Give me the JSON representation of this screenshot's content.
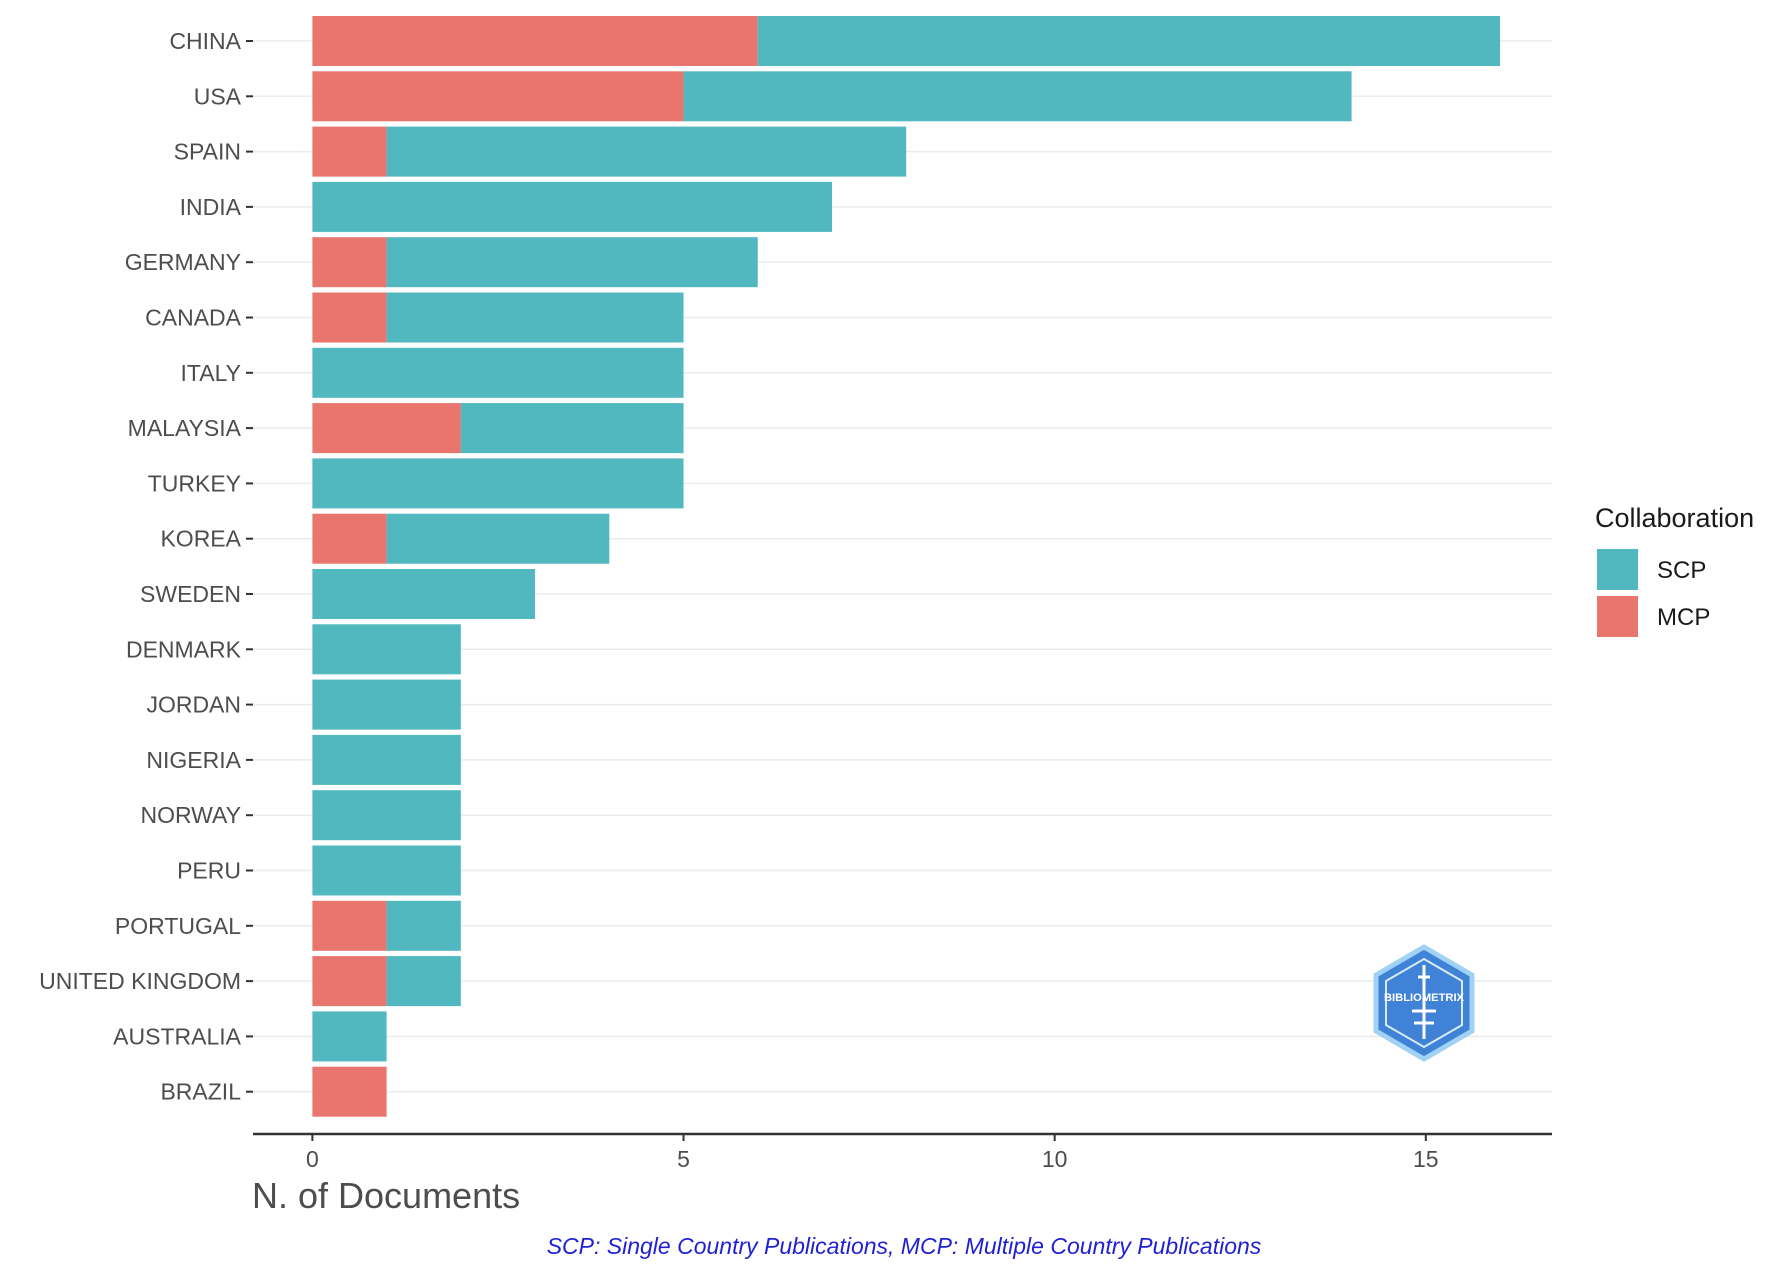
{
  "chart_data": {
    "type": "bar",
    "orientation": "horizontal",
    "stacked": true,
    "title": "",
    "xlabel": "N. of Documents",
    "ylabel": "",
    "xlim": [
      -0.8,
      16.7
    ],
    "x_ticks": [
      0,
      5,
      10,
      15
    ],
    "grid": true,
    "categories": [
      "CHINA",
      "USA",
      "SPAIN",
      "INDIA",
      "GERMANY",
      "CANADA",
      "ITALY",
      "MALAYSIA",
      "TURKEY",
      "KOREA",
      "SWEDEN",
      "DENMARK",
      "JORDAN",
      "NIGERIA",
      "NORWAY",
      "PERU",
      "PORTUGAL",
      "UNITED KINGDOM",
      "AUSTRALIA",
      "BRAZIL"
    ],
    "series": [
      {
        "name": "MCP",
        "color": "#e8766e",
        "values": [
          6,
          5,
          1,
          0,
          1,
          1,
          0,
          2,
          0,
          1,
          0,
          0,
          0,
          0,
          0,
          0,
          1,
          1,
          0,
          1
        ]
      },
      {
        "name": "SCP",
        "color": "#50b8be",
        "values": [
          10,
          9,
          7,
          7,
          5,
          4,
          5,
          3,
          5,
          3,
          3,
          2,
          2,
          2,
          2,
          2,
          1,
          1,
          1,
          0
        ]
      }
    ],
    "legend": {
      "title": "Collaboration",
      "placement": "right",
      "items": [
        {
          "label": "SCP",
          "color": "#50b8be"
        },
        {
          "label": "MCP",
          "color": "#e8766e"
        }
      ]
    },
    "caption": "SCP: Single Country Publications, MCP: Multiple Country Publications",
    "logo": {
      "icon": "bibliometrix-hexagon-logo",
      "text": "BIBLIOMETRIX"
    }
  }
}
